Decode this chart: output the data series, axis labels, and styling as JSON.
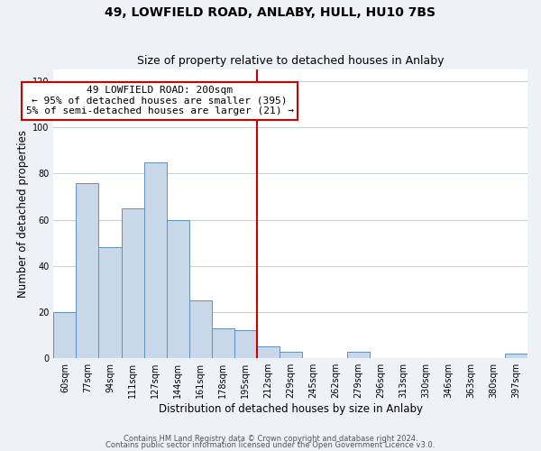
{
  "title": "49, LOWFIELD ROAD, ANLABY, HULL, HU10 7BS",
  "subtitle": "Size of property relative to detached houses in Anlaby",
  "xlabel": "Distribution of detached houses by size in Anlaby",
  "ylabel": "Number of detached properties",
  "bar_labels": [
    "60sqm",
    "77sqm",
    "94sqm",
    "111sqm",
    "127sqm",
    "144sqm",
    "161sqm",
    "178sqm",
    "195sqm",
    "212sqm",
    "229sqm",
    "245sqm",
    "262sqm",
    "279sqm",
    "296sqm",
    "313sqm",
    "330sqm",
    "346sqm",
    "363sqm",
    "380sqm",
    "397sqm"
  ],
  "bar_values": [
    20,
    76,
    48,
    65,
    85,
    60,
    25,
    13,
    12,
    5,
    3,
    0,
    0,
    3,
    0,
    0,
    0,
    0,
    0,
    0,
    2
  ],
  "bar_color": "#c8d8e8",
  "bar_edge_color": "#6090b8",
  "vline_x": 8.5,
  "vline_color": "#cc0000",
  "annotation_text": "49 LOWFIELD ROAD: 200sqm\n← 95% of detached houses are smaller (395)\n5% of semi-detached houses are larger (21) →",
  "annotation_box_color": "#ffffff",
  "annotation_box_edge": "#cc0000",
  "ylim": [
    0,
    125
  ],
  "yticks": [
    0,
    20,
    40,
    60,
    80,
    100,
    120
  ],
  "footnote1": "Contains HM Land Registry data © Crown copyright and database right 2024.",
  "footnote2": "Contains public sector information licensed under the Open Government Licence v3.0.",
  "background_color": "#eef2f6",
  "plot_bg_color": "#ffffff",
  "grid_color": "#c8d0d8",
  "title_fontsize": 10,
  "subtitle_fontsize": 9,
  "axis_label_fontsize": 8.5,
  "tick_fontsize": 7,
  "annotation_fontsize": 8
}
